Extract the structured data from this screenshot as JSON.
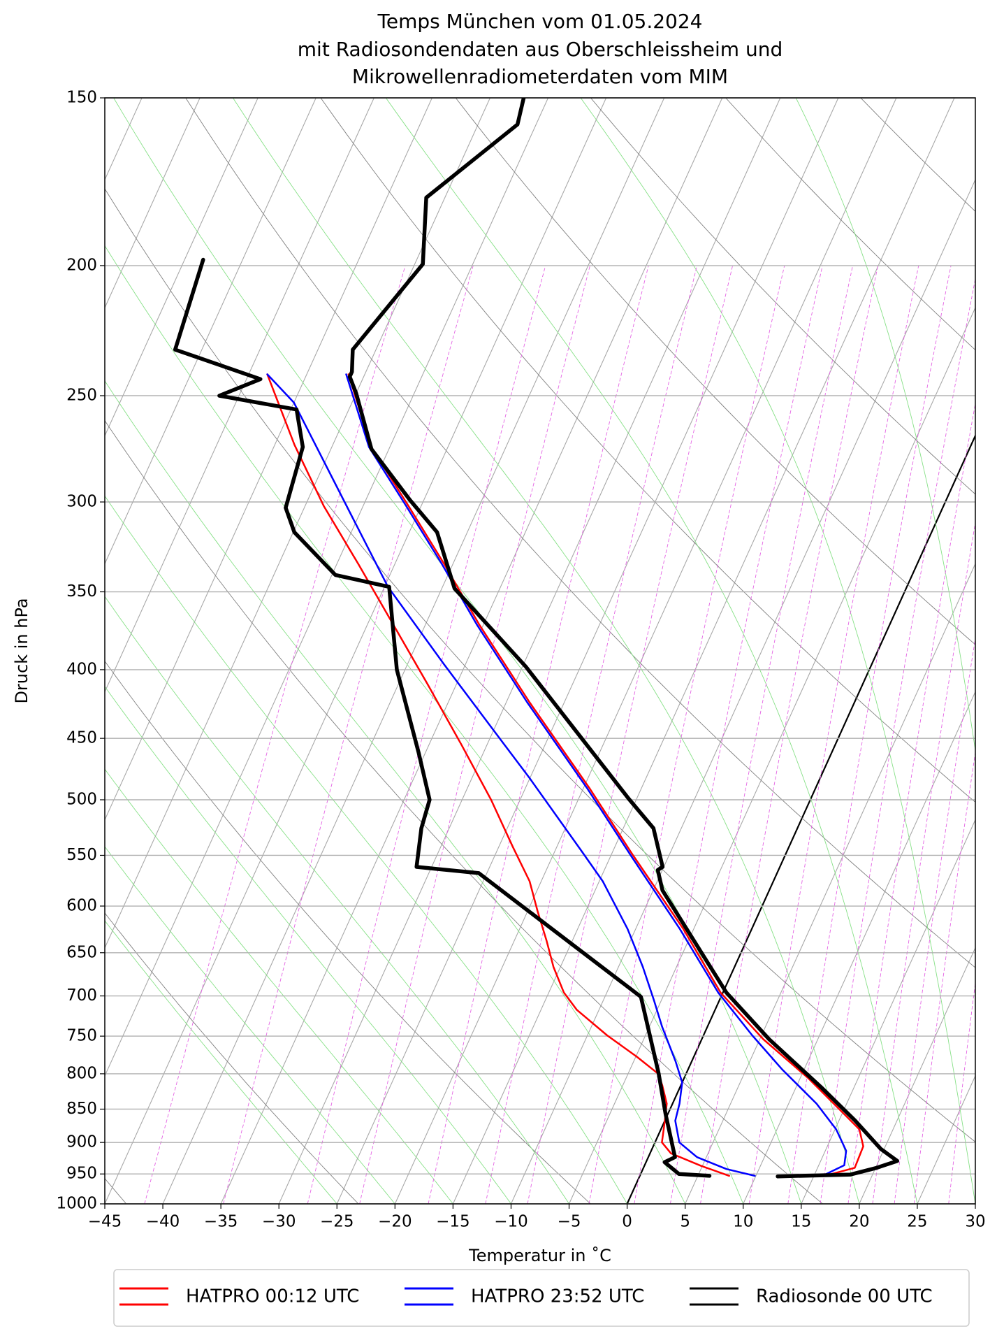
{
  "chart_data": {
    "type": "skewt",
    "title": [
      "Temps München vom 01.05.2024",
      "mit Radiosondendaten aus Oberschleissheim und",
      "Mikrowellenradiometerdaten vom MIM"
    ],
    "xlabel": "Temperatur in ˚C",
    "ylabel": "Druck in hPa",
    "xlim": [
      -45,
      30
    ],
    "xticks": [
      {
        "value": -45,
        "label": "−45"
      },
      {
        "value": -40,
        "label": "−40"
      },
      {
        "value": -35,
        "label": "−35"
      },
      {
        "value": -30,
        "label": "−30"
      },
      {
        "value": -25,
        "label": "−25"
      },
      {
        "value": -20,
        "label": "−20"
      },
      {
        "value": -15,
        "label": "−15"
      },
      {
        "value": -10,
        "label": "−10"
      },
      {
        "value": -5,
        "label": "−5"
      },
      0,
      5,
      10,
      15,
      20,
      25,
      30
    ],
    "ylim": [
      1000,
      150
    ],
    "yticks": [
      150,
      200,
      250,
      300,
      350,
      400,
      450,
      500,
      550,
      600,
      650,
      700,
      750,
      800,
      850,
      900,
      950,
      1000
    ],
    "ylog": true,
    "grid": true,
    "legend": "bottom",
    "series": [
      {
        "name": "HATPRO 00:12 UTC",
        "color": "#ff0000",
        "linewidth": 2.5,
        "temperature": {
          "pressure": [
            953,
            940,
            906,
            880,
            855,
            806,
            754,
            696,
            624,
            550,
            490,
            423,
            370,
            334,
            302,
            273,
            241
          ],
          "values": [
            15.9,
            18.2,
            18.1,
            17.1,
            15.0,
            10.7,
            5.3,
            -0.2,
            -5.9,
            -13.1,
            -19.5,
            -28.0,
            -35.4,
            -40.7,
            -46.1,
            -51.6,
            -56.4
          ]
        },
        "dewpoint": {
          "pressure": [
            953,
            937,
            917,
            900,
            867,
            842,
            816,
            800,
            777,
            749,
            717,
            696,
            666,
            637,
            606,
            575,
            542,
            500,
            455,
            410,
            370,
            334,
            302,
            272,
            241
          ],
          "values": [
            7.7,
            4.9,
            1.8,
            0.6,
            0.0,
            -0.5,
            -1.6,
            -2.4,
            -4.9,
            -8.3,
            -11.9,
            -13.7,
            -15.6,
            -17.2,
            -19.1,
            -21.0,
            -23.8,
            -27.5,
            -32.2,
            -37.5,
            -42.8,
            -48.1,
            -53.4,
            -58.3,
            -63.4
          ]
        }
      },
      {
        "name": "HATPRO 23:52 UTC",
        "color": "#0000ff",
        "linewidth": 2.5,
        "temperature": {
          "pressure": [
            951,
            936,
            913,
            880,
            842,
            794,
            749,
            696,
            624,
            550,
            490,
            423,
            370,
            334,
            302,
            273,
            241
          ],
          "values": [
            15.9,
            17.2,
            16.8,
            15.1,
            12.4,
            8.1,
            4.2,
            -0.4,
            -6.2,
            -13.3,
            -19.7,
            -28.2,
            -35.6,
            -40.9,
            -46.3,
            -51.8,
            -56.6
          ]
        },
        "dewpoint": {
          "pressure": [
            953,
            942,
            923,
            900,
            867,
            842,
            812,
            783,
            738,
            706,
            666,
            624,
            575,
            546,
            482,
            455,
            396,
            347,
            306,
            253,
            241
          ],
          "values": [
            9.9,
            7.2,
            4.2,
            2.1,
            0.9,
            0.6,
            0.0,
            -1.4,
            -3.9,
            -5.6,
            -7.9,
            -10.7,
            -14.7,
            -17.7,
            -25.0,
            -28.5,
            -36.9,
            -44.7,
            -50.8,
            -60.0,
            -63.4
          ]
        }
      },
      {
        "name": "Radiosonde 00 UTC",
        "color": "#000000",
        "linewidth": 5.5,
        "temperature": {
          "pressure": [
            954,
            951,
            940,
            929,
            910,
            867,
            818,
            754,
            696,
            584,
            564,
            561,
            525,
            499,
            398,
            348,
            316,
            299,
            274,
            249,
            242,
            240,
            231,
            199.5,
            178,
            168,
            157,
            150
          ],
          "values": [
            11.9,
            18.1,
            20.1,
            21.6,
            19.7,
            16.4,
            12.1,
            5.8,
            0.3,
            -9.2,
            -10.4,
            -10.1,
            -12.4,
            -15.7,
            -29.7,
            -38.9,
            -42.6,
            -46.2,
            -51.5,
            -55.0,
            -56.2,
            -56.2,
            -57.0,
            -54.3,
            -56.6,
            -54.3,
            -51.6,
            -52.1
          ]
        },
        "dewpoint": {
          "pressure": [
            953,
            950,
            931,
            923,
            857,
            799,
            701,
            567,
            561,
            525,
            500,
            461,
            400,
            347,
            340,
            316,
            303,
            273,
            256,
            250,
            243,
            231,
            198
          ],
          "values": [
            6.0,
            3.3,
            1.6,
            2.3,
            -0.2,
            -2.4,
            -6.9,
            -25.7,
            -31.3,
            -32.4,
            -32.8,
            -35.6,
            -40.7,
            -44.6,
            -49.7,
            -54.9,
            -56.6,
            -57.5,
            -59.5,
            -66.7,
            -63.8,
            -72.3,
            -73.4
          ]
        }
      }
    ]
  }
}
